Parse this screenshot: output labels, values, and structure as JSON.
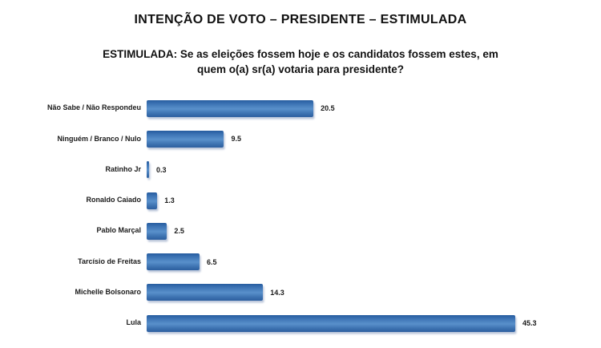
{
  "header": {
    "title": "INTENÇÃO DE VOTO – PRESIDENTE – ESTIMULADA",
    "subtitle": "ESTIMULADA: Se as eleições fossem hoje e os candidatos fossem estes, em quem o(a) sr(a) votaria para presidente?"
  },
  "chart_data": {
    "type": "bar",
    "orientation": "horizontal",
    "title": "INTENÇÃO DE VOTO – PRESIDENTE – ESTIMULADA",
    "subtitle": "ESTIMULADA: Se as eleições fossem hoje e os candidatos fossem estes, em quem o(a) sr(a) votaria para presidente?",
    "categories": [
      "Não Sabe / Não Respondeu",
      "Ninguém / Branco / Nulo",
      "Ratinho Jr",
      "Ronaldo Caiado",
      "Pablo Marçal",
      "Tarcísio de Freitas",
      "Michelle Bolsonaro",
      "Lula"
    ],
    "values": [
      20.5,
      9.5,
      0.3,
      1.3,
      2.5,
      6.5,
      14.3,
      45.3
    ],
    "value_labels": [
      "20.5",
      "9.5",
      "0.3",
      "1.3",
      "2.5",
      "6.5",
      "14.3",
      "45.3"
    ],
    "xlim": [
      0,
      46
    ],
    "grid": false,
    "legend": false,
    "axis_lines": false,
    "data_labels": "outside-end",
    "bar_color": "#3d74b5",
    "bar_gradient_top": "#265c9f",
    "bar_gradient_mid": "#5990cb",
    "bar_gradient_bottom": "#2d5f9f",
    "background_color": "#ffffff",
    "text_color": "#111111"
  }
}
